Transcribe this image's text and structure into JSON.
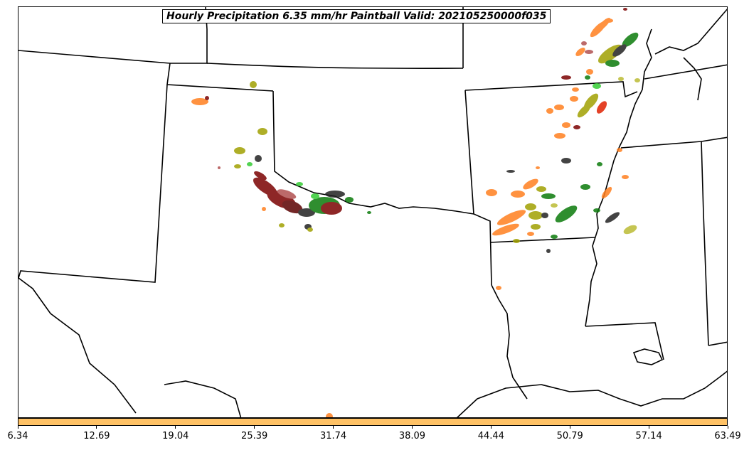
{
  "title": "Hourly Precipitation 6.35 mm/hr Paintball Valid: 202105250000f035",
  "colorbar": {
    "color": "#ffc266",
    "tick_labels": [
      "6.34",
      "12.69",
      "19.04",
      "25.39",
      "31.74",
      "38.09",
      "44.44",
      "50.79",
      "57.14",
      "63.49"
    ]
  },
  "colors": {
    "border": "#000000",
    "dark_red": "#7a0000",
    "orange": "#ff7f1e",
    "olive": "#a0a000",
    "green": "#0a7a0a",
    "bright_green": "#33cc33",
    "black": "#222222",
    "red": "#e02000",
    "pale_olive": "#bbbb33"
  }
}
